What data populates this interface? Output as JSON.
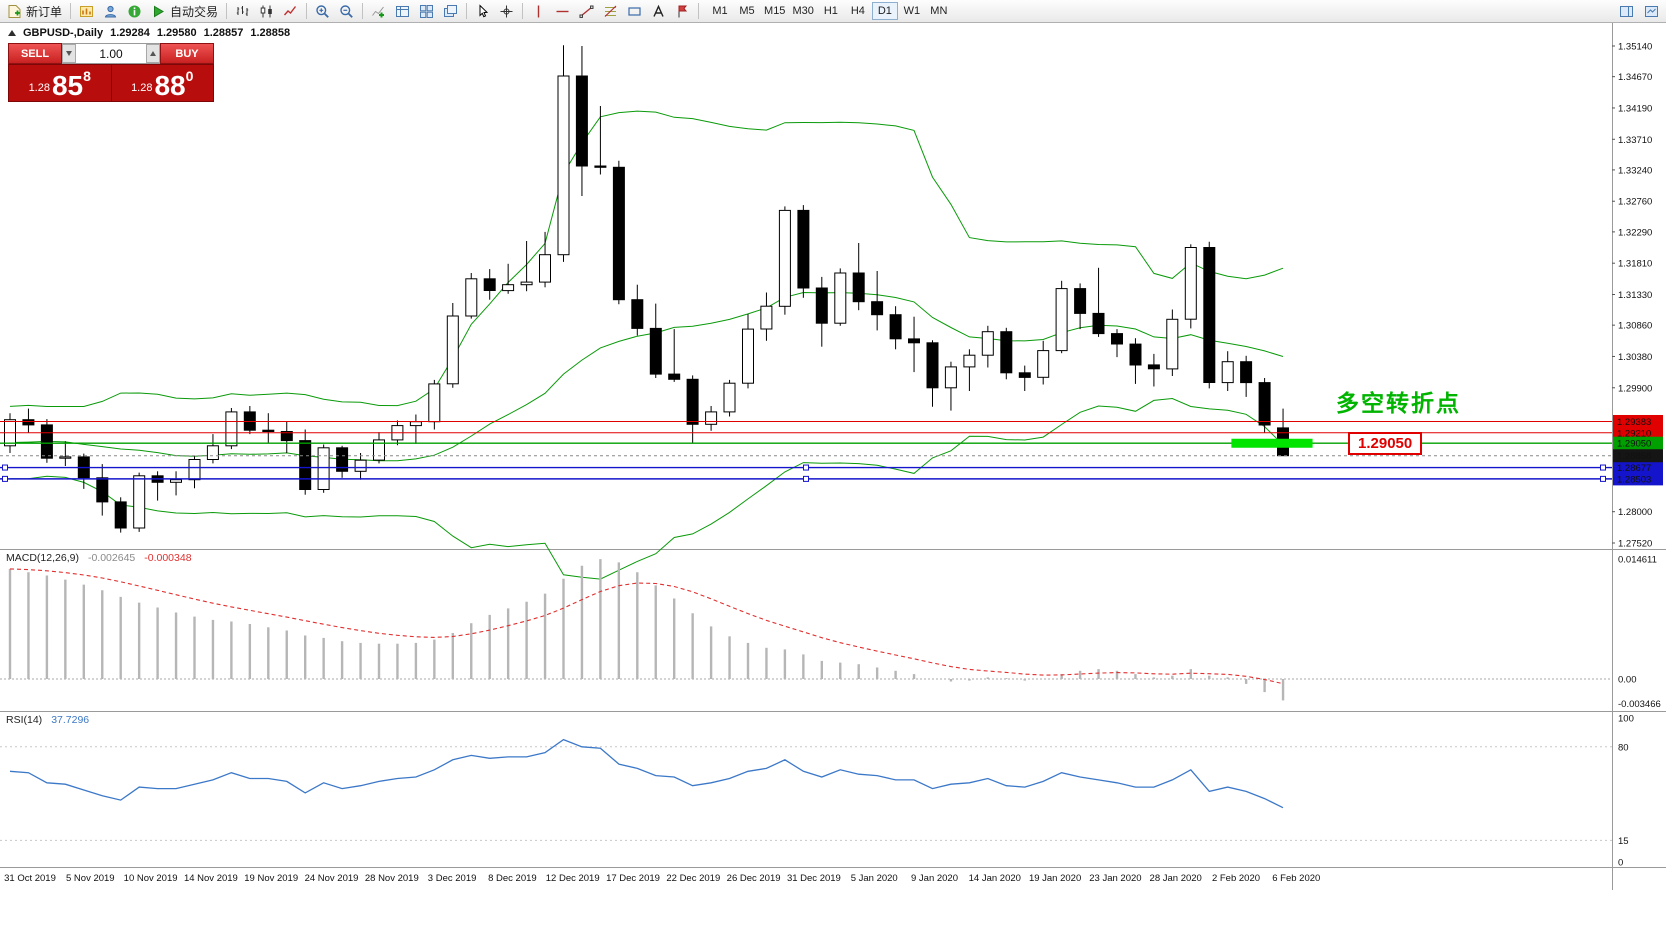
{
  "toolbar": {
    "new_order_label": "新订单",
    "autotrading_label": "自动交易",
    "timeframes": [
      "M1",
      "M5",
      "M15",
      "M30",
      "H1",
      "H4",
      "D1",
      "W1",
      "MN"
    ],
    "active_timeframe": "D1"
  },
  "chart_header": {
    "symbol": "GBPUSD-,Daily",
    "open": "1.29284",
    "high": "1.29580",
    "low": "1.28857",
    "close": "1.28858"
  },
  "trade_panel": {
    "sell_label": "SELL",
    "buy_label": "BUY",
    "volume": "1.00",
    "bid_prefix": "1.28",
    "bid_main": "85",
    "bid_pip": "8",
    "ask_prefix": "1.28",
    "ask_main": "88",
    "ask_pip": "0"
  },
  "annotations": {
    "turning_point": "多空转折点",
    "price_tag": "1.29050"
  },
  "indicators": {
    "macd_name": "MACD(12,26,9)",
    "macd_main_value": "-0.002645",
    "macd_signal_value": "-0.000348",
    "rsi_name": "RSI(14)",
    "rsi_value": "37.7296"
  },
  "chart_data": {
    "type": "candlestick",
    "symbol": "GBPUSD",
    "timeframe": "Daily",
    "price_axis": {
      "min": 1.2752,
      "max": 1.3514,
      "ticks": [
        "1.35140",
        "1.34670",
        "1.34190",
        "1.33710",
        "1.33240",
        "1.32760",
        "1.32290",
        "1.31810",
        "1.31330",
        "1.30860",
        "1.30380",
        "1.29900",
        "1.28000",
        "1.27520"
      ]
    },
    "date_axis": [
      "31 Oct 2019",
      "5 Nov 2019",
      "10 Nov 2019",
      "14 Nov 2019",
      "19 Nov 2019",
      "24 Nov 2019",
      "28 Nov 2019",
      "3 Dec 2019",
      "8 Dec 2019",
      "12 Dec 2019",
      "17 Dec 2019",
      "22 Dec 2019",
      "26 Dec 2019",
      "31 Dec 2019",
      "5 Jan 2020",
      "9 Jan 2020",
      "14 Jan 2020",
      "19 Jan 2020",
      "23 Jan 2020",
      "28 Jan 2020",
      "2 Feb 2020",
      "6 Feb 2020"
    ],
    "ohlc": [
      [
        1.2901,
        1.2951,
        1.289,
        1.2941
      ],
      [
        1.2941,
        1.2958,
        1.2921,
        1.2933
      ],
      [
        1.2933,
        1.2942,
        1.2875,
        1.2882
      ],
      [
        1.2882,
        1.2908,
        1.287,
        1.2884
      ],
      [
        1.2884,
        1.2889,
        1.2835,
        1.2852
      ],
      [
        1.2852,
        1.2873,
        1.2794,
        1.2815
      ],
      [
        1.2815,
        1.2822,
        1.2768,
        1.2775
      ],
      [
        1.2775,
        1.286,
        1.2769,
        1.2855
      ],
      [
        1.2855,
        1.2862,
        1.2817,
        1.2845
      ],
      [
        1.2845,
        1.2862,
        1.2825,
        1.2849
      ],
      [
        1.2849,
        1.2885,
        1.2836,
        1.288
      ],
      [
        1.288,
        1.2919,
        1.2874,
        1.2901
      ],
      [
        1.2901,
        1.2959,
        1.2896,
        1.2953
      ],
      [
        1.2953,
        1.2962,
        1.2919,
        1.2925
      ],
      [
        1.2925,
        1.2951,
        1.2905,
        1.2923
      ],
      [
        1.2923,
        1.2938,
        1.289,
        1.2909
      ],
      [
        1.2909,
        1.2926,
        1.2826,
        1.2834
      ],
      [
        1.2834,
        1.2903,
        1.2829,
        1.2898
      ],
      [
        1.2898,
        1.2901,
        1.2852,
        1.2862
      ],
      [
        1.2862,
        1.289,
        1.2849,
        1.2879
      ],
      [
        1.2879,
        1.2922,
        1.2874,
        1.291
      ],
      [
        1.291,
        1.294,
        1.2902,
        1.2932
      ],
      [
        1.2932,
        1.2949,
        1.2904,
        1.2938
      ],
      [
        1.2938,
        1.3002,
        1.2926,
        1.2996
      ],
      [
        1.2996,
        1.312,
        1.299,
        1.31
      ],
      [
        1.31,
        1.3166,
        1.3096,
        1.3157
      ],
      [
        1.3157,
        1.3172,
        1.3125,
        1.3139
      ],
      [
        1.3139,
        1.318,
        1.3134,
        1.3148
      ],
      [
        1.3148,
        1.3215,
        1.3138,
        1.3152
      ],
      [
        1.3152,
        1.3229,
        1.3144,
        1.3194
      ],
      [
        1.3194,
        1.3515,
        1.3183,
        1.3468
      ],
      [
        1.3468,
        1.3514,
        1.3284,
        1.333
      ],
      [
        1.333,
        1.3422,
        1.3317,
        1.3328
      ],
      [
        1.3328,
        1.3338,
        1.3118,
        1.3125
      ],
      [
        1.3125,
        1.3148,
        1.307,
        1.3081
      ],
      [
        1.3081,
        1.3119,
        1.3005,
        1.3011
      ],
      [
        1.3011,
        1.308,
        1.2999,
        1.3003
      ],
      [
        1.3003,
        1.3009,
        1.2905,
        1.2934
      ],
      [
        1.2934,
        1.2962,
        1.2924,
        1.2953
      ],
      [
        1.2953,
        1.3002,
        1.2946,
        1.2997
      ],
      [
        1.2997,
        1.3103,
        1.2989,
        1.308
      ],
      [
        1.308,
        1.3136,
        1.3062,
        1.3115
      ],
      [
        1.3115,
        1.3268,
        1.3102,
        1.3262
      ],
      [
        1.3262,
        1.327,
        1.3128,
        1.3143
      ],
      [
        1.3143,
        1.316,
        1.3053,
        1.3089
      ],
      [
        1.3089,
        1.3173,
        1.3085,
        1.3166
      ],
      [
        1.3166,
        1.3212,
        1.3109,
        1.3122
      ],
      [
        1.3122,
        1.3169,
        1.3078,
        1.3102
      ],
      [
        1.3102,
        1.3115,
        1.3049,
        1.3065
      ],
      [
        1.3065,
        1.3099,
        1.3014,
        1.3059
      ],
      [
        1.3059,
        1.3063,
        1.2961,
        1.299
      ],
      [
        1.299,
        1.303,
        1.2955,
        1.3022
      ],
      [
        1.3022,
        1.3049,
        1.2985,
        1.304
      ],
      [
        1.304,
        1.3085,
        1.3021,
        1.3076
      ],
      [
        1.3076,
        1.3082,
        1.3003,
        1.3013
      ],
      [
        1.3013,
        1.3024,
        1.2985,
        1.3006
      ],
      [
        1.3006,
        1.3062,
        1.2995,
        1.3047
      ],
      [
        1.3047,
        1.3154,
        1.3043,
        1.3142
      ],
      [
        1.3142,
        1.315,
        1.308,
        1.3104
      ],
      [
        1.3104,
        1.3174,
        1.3068,
        1.3073
      ],
      [
        1.3073,
        1.308,
        1.3037,
        1.3057
      ],
      [
        1.3057,
        1.3066,
        1.2996,
        1.3025
      ],
      [
        1.3025,
        1.3042,
        1.2992,
        1.3019
      ],
      [
        1.3019,
        1.311,
        1.3008,
        1.3095
      ],
      [
        1.3095,
        1.321,
        1.3081,
        1.3205
      ],
      [
        1.3205,
        1.3214,
        1.2989,
        1.2998
      ],
      [
        1.2998,
        1.3046,
        1.2985,
        1.303
      ],
      [
        1.303,
        1.3039,
        1.2976,
        1.2998
      ],
      [
        1.2998,
        1.3005,
        1.2921,
        1.2933
      ],
      [
        1.29284,
        1.2958,
        1.28857,
        1.28858
      ]
    ],
    "bollinger": {
      "period": 20,
      "deviation": 2,
      "color": "#0a9a0a",
      "preroll_closes": [
        1.289,
        1.292,
        1.286,
        1.29,
        1.293,
        1.288,
        1.285,
        1.289,
        1.292,
        1.294,
        1.29,
        1.287,
        1.291,
        1.294,
        1.291,
        1.288,
        1.292,
        1.295,
        1.292,
        1.289
      ]
    },
    "levels": [
      {
        "price": 1.29383,
        "color": "#e00000",
        "width": 1
      },
      {
        "price": 1.2921,
        "color": "#e00000",
        "width": 1
      },
      {
        "price": 1.2905,
        "color": "#00a000",
        "width": 1.4
      },
      {
        "price": 1.28677,
        "color": "#1414cc",
        "width": 1.4,
        "handles": true
      },
      {
        "price": 1.28503,
        "color": "#1414cc",
        "width": 1.4,
        "handles": true
      }
    ],
    "current_price": {
      "price": 1.28858,
      "badge_color": "#151515"
    },
    "highlight": {
      "price": 1.2905,
      "bar_start": 66.2,
      "bar_end": 70.6,
      "color": "#00e400",
      "width": 9
    },
    "macd": {
      "hist_color": "#b6b6b6",
      "signal_color": "#e03030",
      "signal_period": 9,
      "hist": [
        0.0134,
        0.013,
        0.0126,
        0.0121,
        0.0115,
        0.0108,
        0.01,
        0.0093,
        0.0087,
        0.0081,
        0.0076,
        0.0072,
        0.007,
        0.0067,
        0.0063,
        0.0059,
        0.0053,
        0.005,
        0.0046,
        0.0044,
        0.0043,
        0.0043,
        0.0044,
        0.0048,
        0.0056,
        0.0068,
        0.0078,
        0.0086,
        0.0094,
        0.0104,
        0.0122,
        0.0138,
        0.0146,
        0.0142,
        0.013,
        0.0114,
        0.0098,
        0.008,
        0.0064,
        0.0052,
        0.0044,
        0.0038,
        0.0036,
        0.003,
        0.0022,
        0.002,
        0.0018,
        0.0014,
        0.001,
        0.0006,
        0.0,
        -0.0003,
        -0.0002,
        0.0002,
        0.0001,
        -0.0002,
        0.0,
        0.0006,
        0.001,
        0.0012,
        0.001,
        0.0006,
        0.0002,
        0.0004,
        0.0012,
        0.0004,
        0.0002,
        -0.0006,
        -0.0016,
        -0.0026
      ],
      "axis_ticks": [
        {
          "label": "0.014611",
          "value": 0.014611
        },
        {
          "label": "0.00",
          "value": 0
        },
        {
          "label": "-0.003466",
          "value": -0.003466
        }
      ]
    },
    "rsi": {
      "color": "#3c78c8",
      "levels": [
        80,
        15
      ],
      "values": [
        63,
        62,
        55,
        54,
        50,
        46,
        43,
        52,
        51,
        51,
        54,
        57,
        62,
        58,
        58,
        56,
        48,
        55,
        51,
        53,
        56,
        58,
        59,
        64,
        71,
        74,
        72,
        73,
        73,
        76,
        85,
        80,
        79,
        68,
        65,
        60,
        59,
        53,
        55,
        58,
        63,
        65,
        71,
        63,
        59,
        64,
        61,
        60,
        57,
        57,
        51,
        54,
        55,
        58,
        53,
        52,
        56,
        62,
        59,
        57,
        55,
        52,
        52,
        57,
        64,
        49,
        52,
        49,
        44,
        37.73
      ],
      "axis_ticks": [
        {
          "label": "100",
          "value": 100
        },
        {
          "label": "80",
          "value": 80
        },
        {
          "label": "15",
          "value": 15
        },
        {
          "label": "0",
          "value": 0
        }
      ]
    }
  }
}
